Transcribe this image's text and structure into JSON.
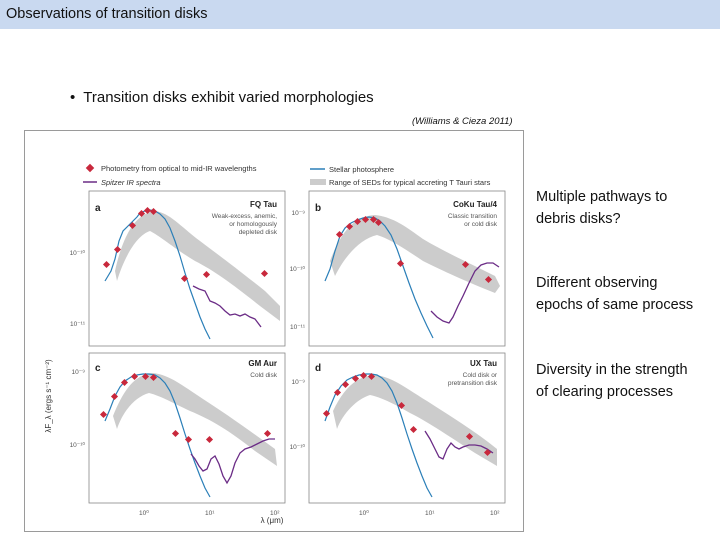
{
  "slide": {
    "title": "Observations of transition disks",
    "bullet": "Transition disks exhibit varied morphologies",
    "citation": "(Williams & Cieza 2011)",
    "notes": [
      [
        "Multiple pathways to",
        "debris disks?"
      ],
      [
        "Different observing",
        "epochs of same process"
      ],
      [
        "Diversity in the strength",
        "of clearing processes"
      ]
    ]
  },
  "figure": {
    "legend": {
      "photometry": "Photometry from optical to mid-IR wavelengths",
      "spitzer": "Spitzer IR spectra",
      "photosphere": "Stellar photosphere",
      "sed_range": "Range of SEDs for typical accreting T Tauri stars"
    },
    "colors": {
      "photometry": "#c8283c",
      "spitzer": "#6b2c86",
      "photosphere": "#2b7fb8",
      "sed_range": "#cccccc"
    },
    "ylabel": "λF_λ (ergs s⁻¹ cm⁻²)",
    "xlabel": "λ (μm)",
    "panels": [
      {
        "letter": "a",
        "name": "FQ Tau",
        "desc": [
          "Weak-excess, anemic,",
          "or homologously",
          "depleted disk"
        ],
        "yticks": [
          "10⁻¹⁰",
          "10⁻¹¹"
        ]
      },
      {
        "letter": "b",
        "name": "CoKu Tau/4",
        "desc": [
          "Classic transition",
          "or cold disk"
        ],
        "yticks": [
          "10⁻⁹",
          "10⁻¹⁰",
          "10⁻¹¹"
        ]
      },
      {
        "letter": "c",
        "name": "GM Aur",
        "desc": [
          "Cold disk"
        ],
        "yticks": [
          "10⁻⁹",
          "10⁻¹⁰"
        ]
      },
      {
        "letter": "d",
        "name": "UX Tau",
        "desc": [
          "Cold disk or",
          "pretransition disk"
        ],
        "yticks": [
          "10⁻⁹",
          "10⁻¹⁰"
        ]
      }
    ],
    "xticks": [
      "10⁰",
      "10¹",
      "10²"
    ]
  }
}
